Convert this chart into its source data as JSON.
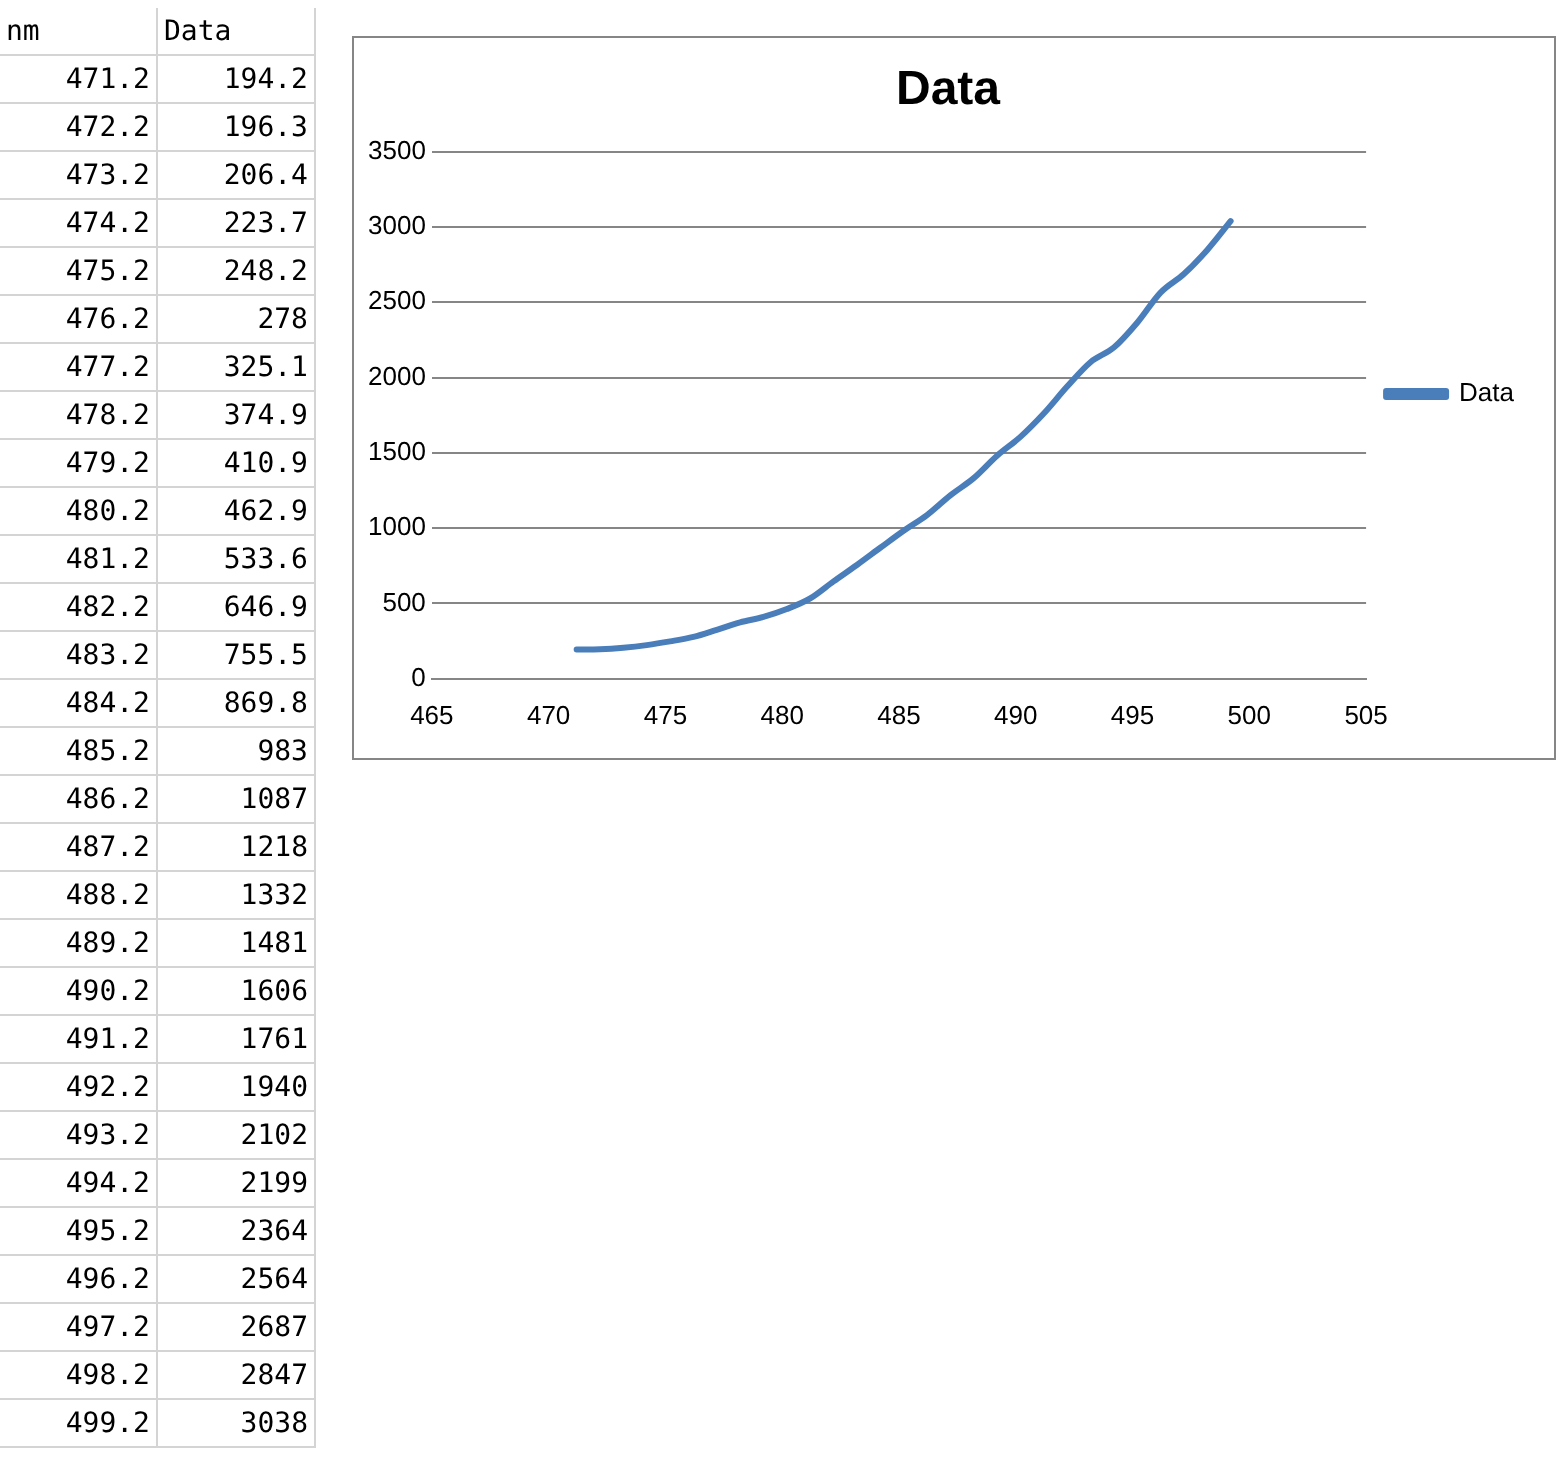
{
  "chart_data": {
    "type": "line",
    "title": "Data",
    "x": [
      471.2,
      472.2,
      473.2,
      474.2,
      475.2,
      476.2,
      477.2,
      478.2,
      479.2,
      480.2,
      481.2,
      482.2,
      483.2,
      484.2,
      485.2,
      486.2,
      487.2,
      488.2,
      489.2,
      490.2,
      491.2,
      492.2,
      493.2,
      494.2,
      495.2,
      496.2,
      497.2,
      498.2,
      499.2
    ],
    "series": [
      {
        "name": "Data",
        "color": "#4a7ebb",
        "values": [
          194.2,
          196.3,
          206.4,
          223.7,
          248.2,
          278,
          325.1,
          374.9,
          410.9,
          462.9,
          533.6,
          646.9,
          755.5,
          869.8,
          983,
          1087,
          1218,
          1332,
          1481,
          1606,
          1761,
          1940,
          2102,
          2199,
          2364,
          2564,
          2687,
          2847,
          3038
        ]
      }
    ],
    "xlim": [
      465,
      505
    ],
    "xticks": [
      465,
      470,
      475,
      480,
      485,
      490,
      495,
      500,
      505
    ],
    "ylim": [
      0,
      3500
    ],
    "yticks": [
      0,
      500,
      1000,
      1500,
      2000,
      2500,
      3000,
      3500
    ],
    "grid": "y",
    "legend": "right",
    "annotations": [
      "nm",
      "Data",
      "471.2",
      "194.2",
      "472.2",
      "196.3",
      "473.2",
      "206.4",
      "474.2",
      "223.7",
      "475.2",
      "248.2",
      "476.2",
      "278",
      "477.2",
      "325.1",
      "478.2",
      "374.9",
      "479.2",
      "410.9",
      "480.2",
      "462.9",
      "481.2",
      "533.6",
      "482.2",
      "646.9",
      "483.2",
      "755.5",
      "484.2",
      "869.8",
      "485.2",
      "983",
      "486.2",
      "1087",
      "487.2",
      "1218",
      "488.2",
      "1332",
      "489.2",
      "1481",
      "490.2",
      "1606",
      "491.2",
      "1761",
      "492.2",
      "1940",
      "493.2",
      "2102",
      "494.2",
      "2199",
      "495.2",
      "2364",
      "496.2",
      "2564",
      "497.2",
      "2687",
      "498.2",
      "2847",
      "499.2",
      "3038"
    ]
  }
}
